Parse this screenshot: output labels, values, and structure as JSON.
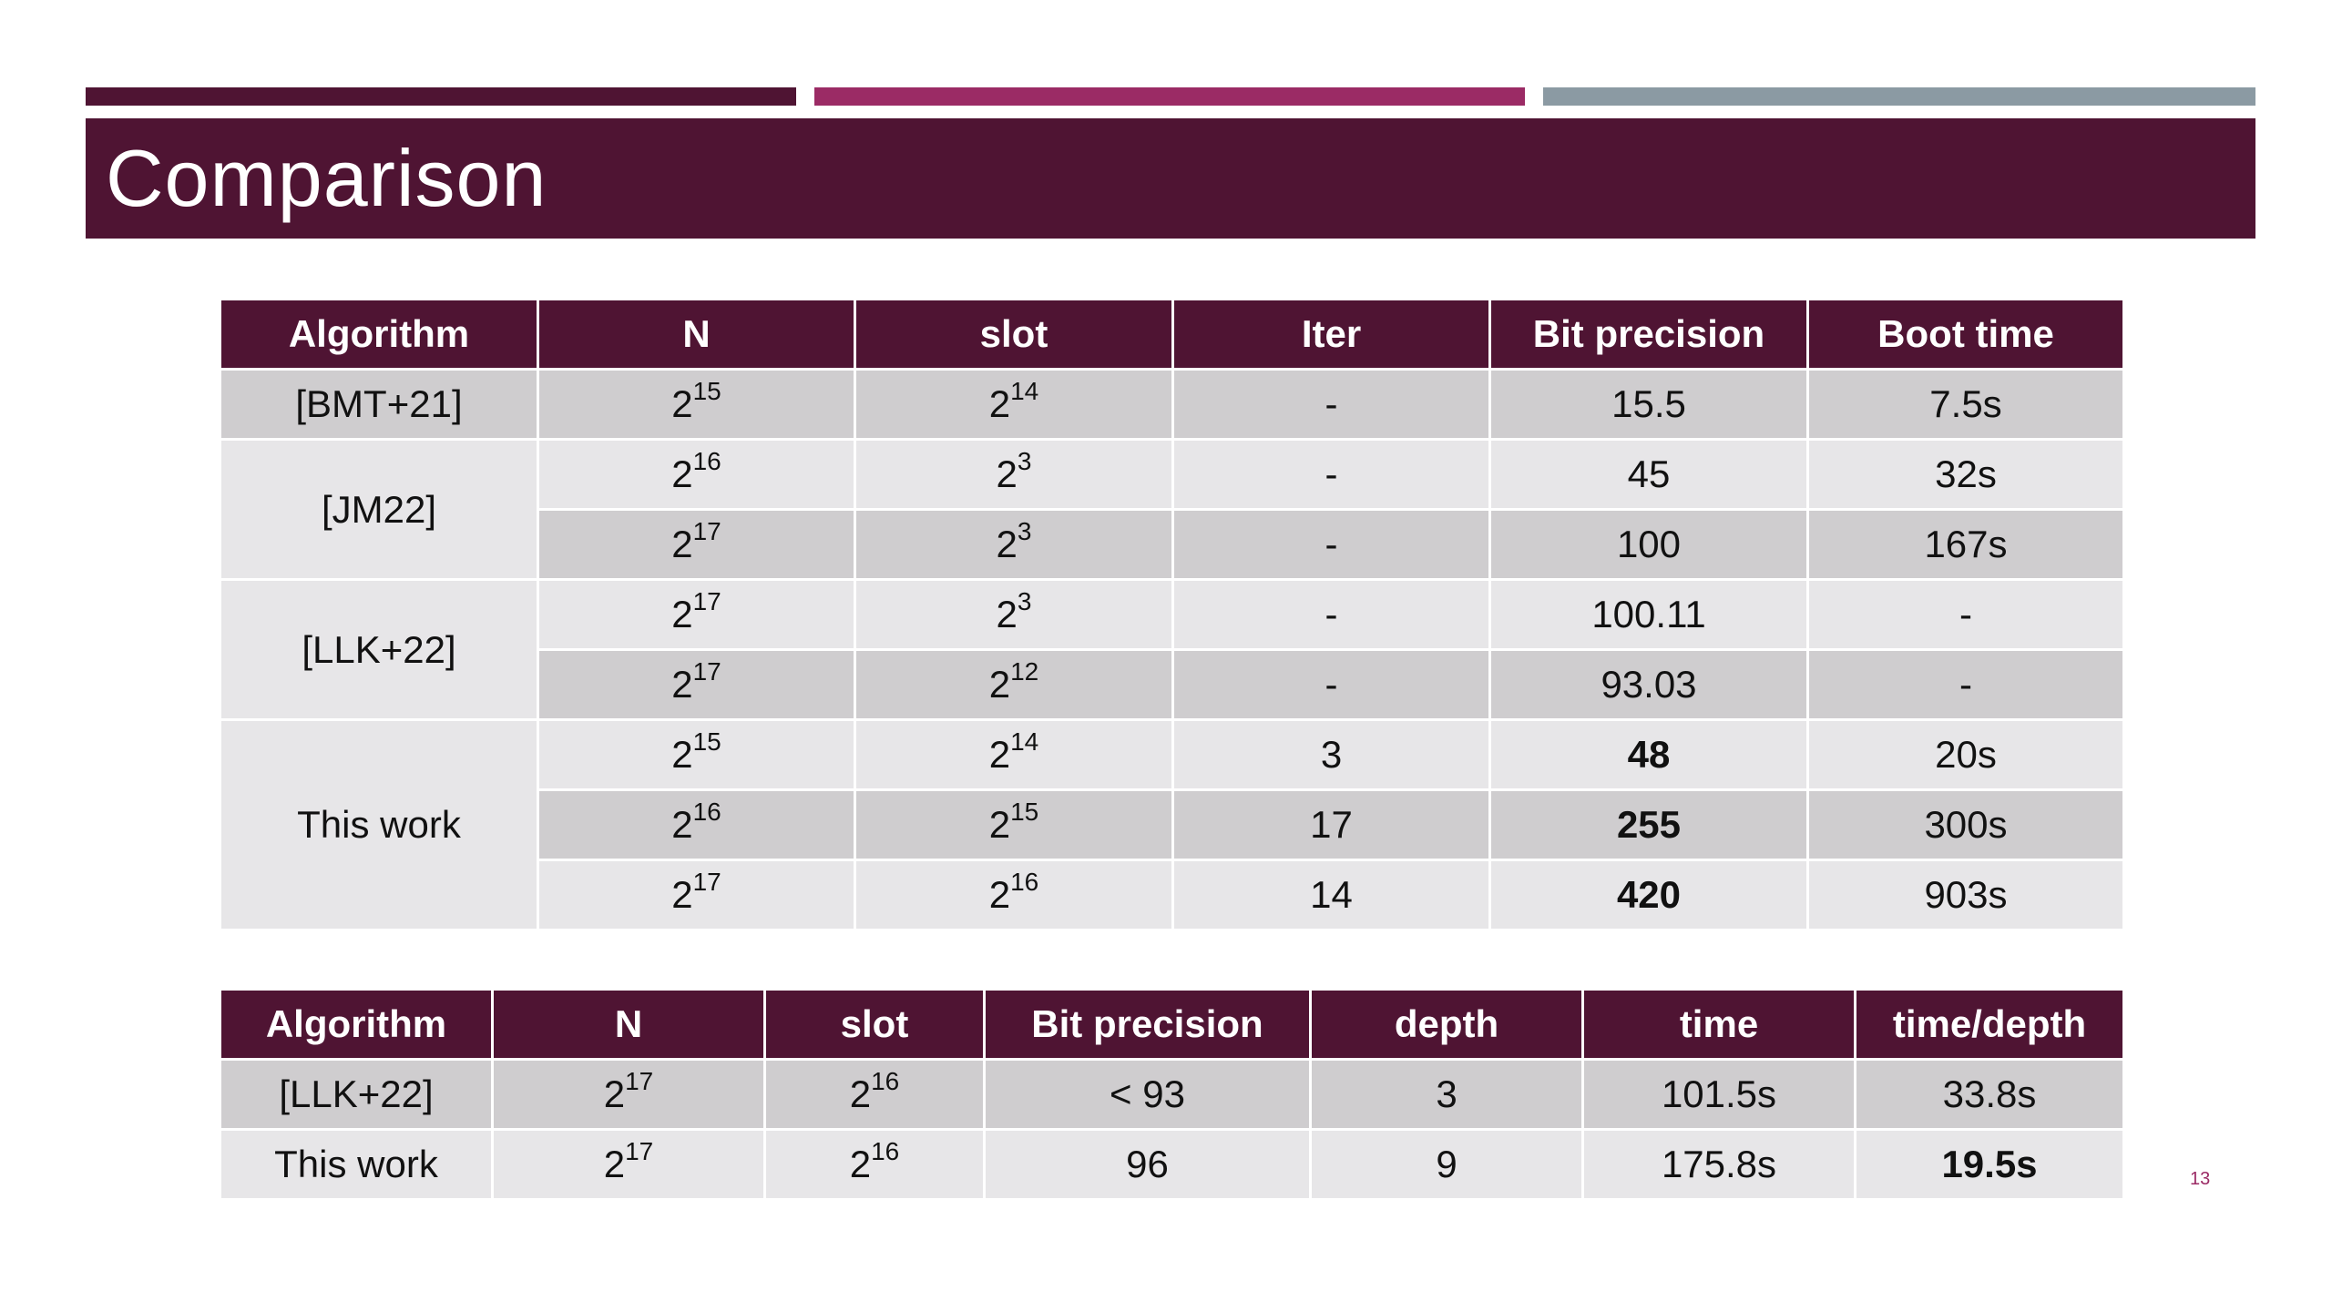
{
  "slide": {
    "title": "Comparison",
    "page_number": "13",
    "accent_colors": [
      "#4f1433",
      "#9b2b65",
      "#8b9aa3"
    ]
  },
  "table1": {
    "headers": [
      "Algorithm",
      "N",
      "slot",
      "Iter",
      "Bit precision",
      "Boot time"
    ],
    "rows": [
      {
        "algorithm": "[BMT+21]",
        "n_base": "2",
        "n_exp": "15",
        "slot_base": "2",
        "slot_exp": "14",
        "iter": "-",
        "bit_precision": "15.5",
        "boot_time": "7.5s"
      },
      {
        "algorithm": "[JM22]",
        "n_base": "2",
        "n_exp": "16",
        "slot_base": "2",
        "slot_exp": "3",
        "iter": "-",
        "bit_precision": "45",
        "boot_time": "32s"
      },
      {
        "algorithm": "",
        "n_base": "2",
        "n_exp": "17",
        "slot_base": "2",
        "slot_exp": "3",
        "iter": "-",
        "bit_precision": "100",
        "boot_time": "167s"
      },
      {
        "algorithm": "[LLK+22]",
        "n_base": "2",
        "n_exp": "17",
        "slot_base": "2",
        "slot_exp": "3",
        "iter": "-",
        "bit_precision": "100.11",
        "boot_time": "-"
      },
      {
        "algorithm": "",
        "n_base": "2",
        "n_exp": "17",
        "slot_base": "2",
        "slot_exp": "12",
        "iter": "-",
        "bit_precision": "93.03",
        "boot_time": "-"
      },
      {
        "algorithm": "This work",
        "n_base": "2",
        "n_exp": "15",
        "slot_base": "2",
        "slot_exp": "14",
        "iter": "3",
        "bit_precision": "48",
        "boot_time": "20s"
      },
      {
        "algorithm": "",
        "n_base": "2",
        "n_exp": "16",
        "slot_base": "2",
        "slot_exp": "15",
        "iter": "17",
        "bit_precision": "255",
        "boot_time": "300s"
      },
      {
        "algorithm": "",
        "n_base": "2",
        "n_exp": "17",
        "slot_base": "2",
        "slot_exp": "16",
        "iter": "14",
        "bit_precision": "420",
        "boot_time": "903s"
      }
    ]
  },
  "table2": {
    "headers": [
      "Algorithm",
      "N",
      "slot",
      "Bit precision",
      "depth",
      "time",
      "time/depth"
    ],
    "rows": [
      {
        "algorithm": "[LLK+22]",
        "n_base": "2",
        "n_exp": "17",
        "slot_base": "2",
        "slot_exp": "16",
        "bit_precision": "< 93",
        "depth": "3",
        "time": "101.5s",
        "time_per_depth": "33.8s"
      },
      {
        "algorithm": "This work",
        "n_base": "2",
        "n_exp": "17",
        "slot_base": "2",
        "slot_exp": "16",
        "bit_precision": "96",
        "depth": "9",
        "time": "175.8s",
        "time_per_depth": "19.5s"
      }
    ]
  }
}
